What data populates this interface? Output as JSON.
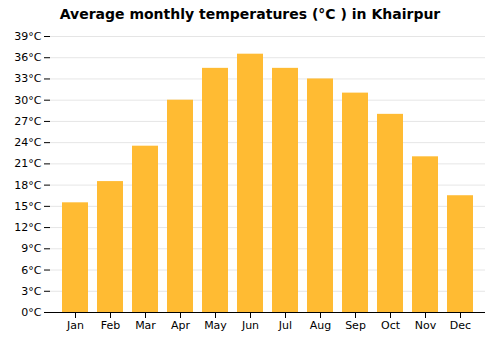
{
  "chart_data": {
    "type": "bar",
    "title": "Average monthly temperatures (°C ) in Khairpur",
    "categories": [
      "Jan",
      "Feb",
      "Mar",
      "Apr",
      "May",
      "Jun",
      "Jul",
      "Aug",
      "Sep",
      "Oct",
      "Nov",
      "Dec"
    ],
    "values": [
      15.5,
      18.5,
      23.5,
      30.0,
      34.5,
      36.5,
      34.5,
      33.0,
      31.0,
      28.0,
      22.0,
      16.5
    ],
    "color": "#FFBB33",
    "ylim": [
      0,
      39
    ],
    "yticks": [
      {
        "value": 0,
        "label": "0°C"
      },
      {
        "value": 3,
        "label": "3°C"
      },
      {
        "value": 6,
        "label": "6°C"
      },
      {
        "value": 9,
        "label": "9°C"
      },
      {
        "value": 12,
        "label": "12°C"
      },
      {
        "value": 15,
        "label": "15°C"
      },
      {
        "value": 18,
        "label": "18°C"
      },
      {
        "value": 21,
        "label": "21°C"
      },
      {
        "value": 24,
        "label": "24°C"
      },
      {
        "value": 27,
        "label": "27°C"
      },
      {
        "value": 30,
        "label": "30°C"
      },
      {
        "value": 33,
        "label": "33°C"
      },
      {
        "value": 36,
        "label": "36°C"
      },
      {
        "value": 39,
        "label": "39°C"
      }
    ],
    "grid": true
  }
}
